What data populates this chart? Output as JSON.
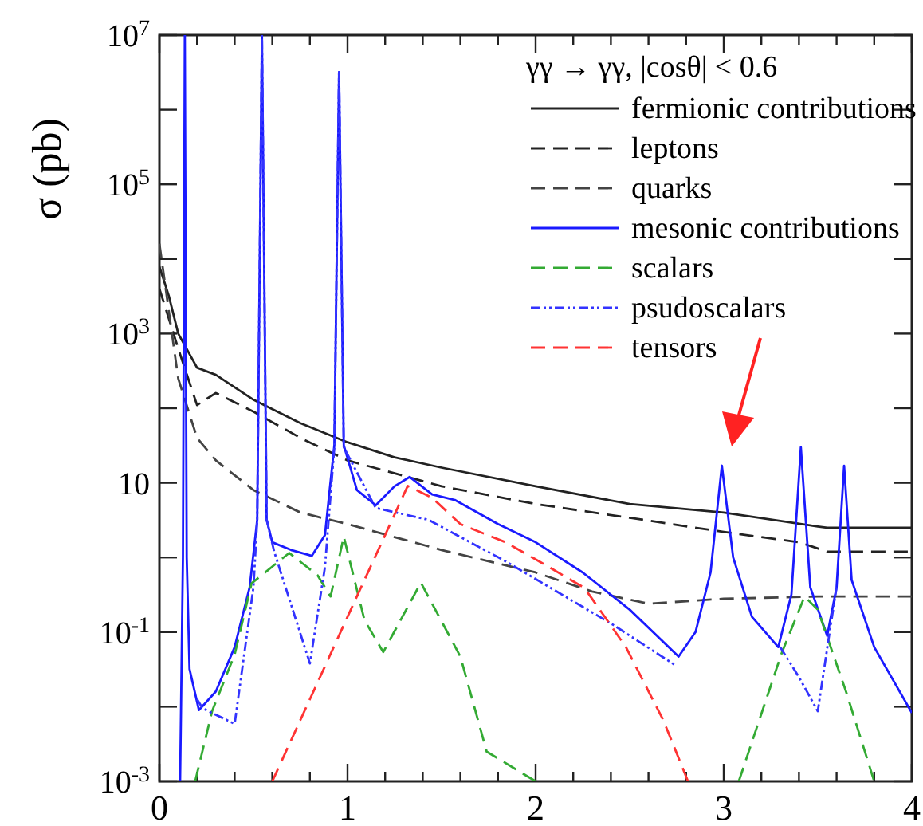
{
  "chart_data": {
    "type": "line",
    "ylabel": "σ (pb)",
    "legend_title": "γγ → γγ,    |cosθ| < 0.6",
    "legend": "top right",
    "log": "y",
    "grid": false,
    "xlim": [
      0,
      4
    ],
    "ylim": [
      0.001,
      10000000
    ],
    "xticks": [
      0,
      {
        "value": 0.2,
        "label": null
      },
      {
        "value": 0.4,
        "label": null
      },
      {
        "value": 0.6,
        "label": null
      },
      {
        "value": 0.8,
        "label": null
      },
      1,
      {
        "value": 1.2,
        "label": null
      },
      {
        "value": 1.4,
        "label": null
      },
      {
        "value": 1.6,
        "label": null
      },
      {
        "value": 1.8,
        "label": null
      },
      2,
      {
        "value": 2.2,
        "label": null
      },
      {
        "value": 2.4,
        "label": null
      },
      {
        "value": 2.6,
        "label": null
      },
      {
        "value": 2.8,
        "label": null
      },
      3,
      {
        "value": 3.2,
        "label": null
      },
      {
        "value": 3.4,
        "label": null
      },
      {
        "value": 3.6,
        "label": null
      },
      {
        "value": 3.8,
        "label": null
      },
      4
    ],
    "yticks": [
      {
        "value": 0.001,
        "label": "10$^{-3}$"
      },
      {
        "value": 0.01,
        "label": null
      },
      {
        "value": 0.1,
        "label": "10$^{-1}$"
      },
      {
        "value": 1,
        "label": null
      },
      10,
      {
        "value": 100,
        "label": null
      },
      {
        "value": 1000,
        "label": "10$^{3}$"
      },
      {
        "value": 10000,
        "label": null
      },
      {
        "value": 100000,
        "label": "10$^{5}$"
      },
      {
        "value": 1000000,
        "label": null
      },
      {
        "value": 10000000,
        "label": "10$^{7}$"
      }
    ],
    "series": [
      {
        "name": "fermionic contributions",
        "color": "#222222",
        "line_style": "solid",
        "x": [
          0,
          0.05,
          0.1,
          0.2,
          0.3,
          0.5,
          0.75,
          1,
          1.25,
          1.5,
          2,
          2.5,
          3,
          3.5,
          3.55,
          4
        ],
        "values": [
          7900,
          3200,
          1000,
          350,
          280,
          130,
          63,
          35,
          22,
          16,
          9,
          5.2,
          4,
          2.6,
          2.5,
          2.5
        ]
      },
      {
        "name": "leptons",
        "color": "#222222",
        "line_style": "dashed",
        "x": [
          0,
          0.1,
          0.2,
          0.3,
          0.5,
          0.75,
          1,
          1.5,
          2,
          2.5,
          3,
          3.4,
          3.55,
          4
        ],
        "values": [
          4000,
          630,
          110,
          160,
          90,
          40,
          20,
          9,
          5.2,
          3.4,
          2.2,
          1.6,
          1.2,
          1.2
        ]
      },
      {
        "name": "quarks",
        "color": "#444444",
        "line_style": "dashed",
        "x": [
          0,
          0.05,
          0.1,
          0.2,
          0.3,
          0.5,
          0.75,
          1,
          1.5,
          2,
          2.3,
          2.6,
          3,
          3.5,
          4
        ],
        "values": [
          16000,
          2000,
          250,
          40,
          20,
          8,
          4,
          2.8,
          1.26,
          0.63,
          0.35,
          0.24,
          0.28,
          0.3,
          0.3
        ]
      },
      {
        "name": "mesonic contributions",
        "color": "#1a1aff",
        "line_style": "solid",
        "x": [
          0.11,
          0.125,
          0.135,
          0.145,
          0.16,
          0.21,
          0.3,
          0.4,
          0.48,
          0.52,
          0.545,
          0.57,
          0.6,
          0.7,
          0.81,
          0.88,
          0.93,
          0.955,
          0.98,
          1.05,
          1.15,
          1.25,
          1.33,
          1.45,
          1.57,
          1.8,
          2,
          2.25,
          2.5,
          2.76,
          2.85,
          2.93,
          2.99,
          3.05,
          3.15,
          3.29,
          3.36,
          3.41,
          3.46,
          3.55,
          3.6,
          3.64,
          3.68,
          3.8,
          4
        ],
        "values": [
          0.001,
          1,
          10000000,
          1,
          0.032,
          0.009,
          0.016,
          0.063,
          0.4,
          3.2,
          10000000,
          3.2,
          1.6,
          1.26,
          1.05,
          2,
          32,
          3200000,
          32,
          8,
          5,
          9,
          12,
          7,
          5.9,
          2.8,
          1.6,
          0.63,
          0.2,
          0.047,
          0.1,
          0.63,
          17,
          1,
          0.16,
          0.063,
          0.32,
          30,
          0.4,
          0.089,
          0.4,
          17,
          0.5,
          0.063,
          0.0083
        ]
      },
      {
        "name": "scalars",
        "color": "#33aa33",
        "line_style": "dashed",
        "x": [
          0.19,
          0.28,
          0.4,
          0.49,
          0.69,
          0.84,
          0.91,
          0.98,
          1.09,
          1.19,
          1.39,
          1.6,
          1.74,
          2,
          2.5,
          3.08,
          3.31,
          3.43,
          3.5,
          3.65,
          3.8
        ],
        "values": [
          0.001,
          0.0087,
          0.05,
          0.45,
          1.15,
          0.58,
          0.3,
          1.9,
          0.145,
          0.054,
          0.46,
          0.047,
          0.0025,
          0.001,
          null,
          0.001,
          0.054,
          0.3,
          0.2,
          0.016,
          0.001
        ]
      },
      {
        "name": "psudoscalars",
        "color": "#3333ff",
        "line_style": "dotted",
        "x": [
          0.2,
          0.23,
          0.4,
          0.5,
          0.52,
          0.545,
          0.57,
          0.61,
          0.8,
          0.88,
          0.93,
          0.955,
          0.98,
          1.15,
          1.43,
          1.84,
          2.41,
          2.75,
          3,
          3.3,
          3.4,
          3.5,
          3.56,
          3.6
        ],
        "values": [
          0.0126,
          0.0095,
          0.0059,
          0.4,
          3.2,
          10000000,
          3.2,
          1.2,
          0.038,
          0.74,
          30,
          3200000,
          30,
          4.6,
          3.2,
          0.89,
          0.126,
          0.035,
          null,
          0.063,
          0.025,
          0.0087,
          0.089,
          0.4
        ]
      },
      {
        "name": "tensors",
        "color": "#ff3333",
        "line_style": "dashed",
        "x": [
          0.6,
          0.8,
          1,
          1.2,
          1.32,
          1.45,
          1.6,
          1.84,
          2.05,
          2.26,
          2.48,
          2.68,
          2.81
        ],
        "values": [
          0.001,
          0.0126,
          0.16,
          2,
          9.1,
          6.3,
          2.8,
          1.6,
          0.8,
          0.39,
          0.063,
          0.0065,
          0.001
        ]
      }
    ]
  }
}
